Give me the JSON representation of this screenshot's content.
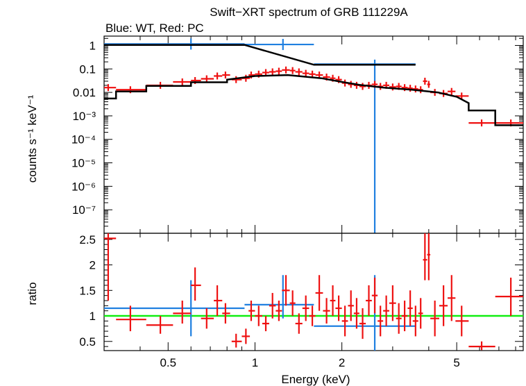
{
  "colors": {
    "blue": "#1f7fe0",
    "red": "#ee1111",
    "black": "#000000",
    "green": "#11ee11"
  },
  "chart_data": {
    "type": "scatter",
    "title": "Swift−XRT spectrum of GRB 111229A",
    "subtitle": "Blue: WT, Red: PC",
    "xlabel": "Energy (keV)",
    "xscale": "log",
    "xlim": [
      0.3,
      8.5
    ],
    "x_ticks": [
      {
        "v": 0.5,
        "label": "0.5"
      },
      {
        "v": 1,
        "label": "1"
      },
      {
        "v": 2,
        "label": "2"
      },
      {
        "v": 5,
        "label": "5"
      }
    ],
    "top_panel": {
      "ylabel": "counts s⁻¹ keV⁻¹",
      "yscale": "log",
      "ylim": [
        1e-08,
        2.5
      ],
      "y_ticks": [
        {
          "v": 1,
          "label": "1"
        },
        {
          "v": 0.1,
          "label": "0.1"
        },
        {
          "v": 0.01,
          "label": "0.01"
        },
        {
          "v": 0.001,
          "label": "10⁻³"
        },
        {
          "v": 0.0001,
          "label": "10⁻⁴"
        },
        {
          "v": 1e-05,
          "label": "10⁻⁵"
        },
        {
          "v": 1e-06,
          "label": "10⁻⁶"
        },
        {
          "v": 1e-07,
          "label": "10⁻⁷"
        }
      ],
      "series": [
        {
          "name": "WT data",
          "color": "blue",
          "points": [
            [
              0.6,
              0.3,
              0.92,
              1.15
            ],
            [
              1.25,
              0.92,
              1.6,
              1.1
            ],
            [
              2.6,
              1.6,
              3.6,
              0.16
            ]
          ]
        },
        {
          "name": "WT model",
          "color": "black",
          "steps": [
            [
              0.3,
              1.05
            ],
            [
              0.92,
              1.05
            ],
            [
              1.6,
              0.15
            ],
            [
              3.6,
              0.15
            ]
          ]
        },
        {
          "name": "PC data",
          "color": "red",
          "points": [
            [
              0.31,
              0.3,
              0.33,
              0.016
            ],
            [
              0.37,
              0.33,
              0.42,
              0.013
            ],
            [
              0.47,
              0.42,
              0.52,
              0.02
            ],
            [
              0.56,
              0.52,
              0.6,
              0.028
            ],
            [
              0.62,
              0.6,
              0.65,
              0.032
            ],
            [
              0.68,
              0.65,
              0.72,
              0.038
            ],
            [
              0.74,
              0.72,
              0.77,
              0.05
            ],
            [
              0.79,
              0.77,
              0.82,
              0.055
            ],
            [
              0.86,
              0.83,
              0.9,
              0.035
            ],
            [
              0.93,
              0.9,
              0.96,
              0.04
            ],
            [
              0.97,
              0.95,
              1.0,
              0.055
            ],
            [
              1.03,
              1.0,
              1.06,
              0.06
            ],
            [
              1.09,
              1.06,
              1.12,
              0.07
            ],
            [
              1.15,
              1.12,
              1.18,
              0.075
            ],
            [
              1.21,
              1.18,
              1.24,
              0.08
            ],
            [
              1.28,
              1.24,
              1.32,
              0.09
            ],
            [
              1.35,
              1.32,
              1.38,
              0.085
            ],
            [
              1.42,
              1.38,
              1.46,
              0.075
            ],
            [
              1.5,
              1.46,
              1.54,
              0.065
            ],
            [
              1.58,
              1.54,
              1.62,
              0.06
            ],
            [
              1.67,
              1.62,
              1.72,
              0.055
            ],
            [
              1.77,
              1.72,
              1.82,
              0.045
            ],
            [
              1.86,
              1.82,
              1.9,
              0.04
            ],
            [
              1.95,
              1.9,
              2.0,
              0.035
            ],
            [
              2.05,
              2.0,
              2.1,
              0.025
            ],
            [
              2.15,
              2.1,
              2.2,
              0.022
            ],
            [
              2.25,
              2.2,
              2.3,
              0.02
            ],
            [
              2.36,
              2.3,
              2.42,
              0.018
            ],
            [
              2.48,
              2.42,
              2.54,
              0.02
            ],
            [
              2.6,
              2.54,
              2.66,
              0.022
            ],
            [
              2.72,
              2.66,
              2.78,
              0.018
            ],
            [
              2.85,
              2.78,
              2.92,
              0.02
            ],
            [
              3.0,
              2.92,
              3.08,
              0.017
            ],
            [
              3.15,
              3.08,
              3.22,
              0.018
            ],
            [
              3.3,
              3.22,
              3.38,
              0.016
            ],
            [
              3.45,
              3.38,
              3.52,
              0.015
            ],
            [
              3.6,
              3.52,
              3.68,
              0.014
            ],
            [
              3.75,
              3.68,
              3.82,
              0.013
            ],
            [
              3.88,
              3.82,
              3.95,
              0.03
            ],
            [
              4.0,
              3.95,
              4.05,
              0.022
            ],
            [
              4.2,
              4.05,
              4.35,
              0.01
            ],
            [
              4.5,
              4.35,
              4.65,
              0.009
            ],
            [
              4.8,
              4.65,
              4.95,
              0.011
            ],
            [
              5.2,
              4.95,
              5.5,
              0.007
            ],
            [
              6.1,
              5.5,
              6.8,
              0.0005
            ],
            [
              7.7,
              6.8,
              8.5,
              0.0005
            ]
          ]
        },
        {
          "name": "PC model",
          "color": "black",
          "steps": [
            [
              0.3,
              0.0055
            ],
            [
              0.33,
              0.0055
            ],
            [
              0.33,
              0.011
            ],
            [
              0.42,
              0.011
            ],
            [
              0.42,
              0.019
            ],
            [
              0.6,
              0.019
            ],
            [
              0.6,
              0.027
            ],
            [
              0.8,
              0.027
            ],
            [
              0.8,
              0.035
            ],
            [
              1.0,
              0.05
            ],
            [
              1.3,
              0.055
            ],
            [
              1.7,
              0.04
            ],
            [
              2.0,
              0.028
            ],
            [
              2.3,
              0.021
            ],
            [
              2.8,
              0.016
            ],
            [
              3.5,
              0.013
            ],
            [
              4.3,
              0.01
            ],
            [
              5.0,
              0.0065
            ],
            [
              5.5,
              0.0035
            ],
            [
              5.5,
              0.0017
            ],
            [
              6.8,
              0.0017
            ],
            [
              6.8,
              0.0004
            ],
            [
              8.5,
              0.0004
            ]
          ]
        }
      ]
    },
    "bottom_panel": {
      "ylabel": "ratio",
      "ylim": [
        0.32,
        2.62
      ],
      "y_ticks": [
        {
          "v": 0.5,
          "label": "0.5"
        },
        {
          "v": 1,
          "label": "1"
        },
        {
          "v": 1.5,
          "label": "1.5"
        },
        {
          "v": 2,
          "label": "2"
        },
        {
          "v": 2.5,
          "label": "2.5"
        }
      ],
      "reference_line": {
        "y": 1,
        "color": "green"
      },
      "series": [
        {
          "name": "WT ratio",
          "color": "blue",
          "points": [
            [
              0.6,
              0.3,
              0.92,
              1.15,
              0.6,
              1.7
            ],
            [
              1.25,
              0.92,
              1.6,
              1.22,
              0.95,
              1.8
            ],
            [
              2.6,
              1.6,
              3.6,
              0.8,
              0.32,
              1.8
            ]
          ]
        },
        {
          "name": "PC ratio",
          "color": "red",
          "points": [
            [
              0.31,
              0.3,
              0.33,
              2.52,
              1.3,
              2.62
            ],
            [
              0.37,
              0.33,
              0.42,
              0.93,
              0.7,
              1.2
            ],
            [
              0.47,
              0.42,
              0.52,
              0.82,
              0.65,
              1.0
            ],
            [
              0.56,
              0.52,
              0.6,
              1.05,
              0.85,
              1.3
            ],
            [
              0.62,
              0.6,
              0.65,
              1.6,
              1.3,
              1.95
            ],
            [
              0.68,
              0.65,
              0.72,
              0.95,
              0.75,
              1.15
            ],
            [
              0.74,
              0.72,
              0.77,
              1.3,
              1.0,
              1.6
            ],
            [
              0.79,
              0.77,
              0.82,
              1.05,
              0.85,
              1.25
            ],
            [
              0.86,
              0.83,
              0.9,
              0.5,
              0.38,
              0.65
            ],
            [
              0.93,
              0.9,
              0.96,
              0.6,
              0.45,
              0.75
            ],
            [
              0.97,
              0.95,
              1.0,
              1.1,
              0.9,
              1.3
            ],
            [
              1.03,
              1.0,
              1.06,
              1.0,
              0.8,
              1.2
            ],
            [
              1.09,
              1.06,
              1.12,
              0.85,
              0.7,
              1.0
            ],
            [
              1.15,
              1.12,
              1.18,
              1.2,
              0.95,
              1.45
            ],
            [
              1.21,
              1.18,
              1.24,
              1.1,
              0.9,
              1.3
            ],
            [
              1.28,
              1.24,
              1.32,
              1.5,
              1.2,
              1.8
            ],
            [
              1.35,
              1.32,
              1.38,
              1.25,
              1.0,
              1.5
            ],
            [
              1.42,
              1.38,
              1.46,
              0.85,
              0.65,
              1.05
            ],
            [
              1.5,
              1.46,
              1.54,
              1.15,
              0.9,
              1.4
            ],
            [
              1.58,
              1.54,
              1.62,
              1.0,
              0.8,
              1.2
            ],
            [
              1.67,
              1.62,
              1.72,
              1.45,
              1.1,
              1.8
            ],
            [
              1.77,
              1.72,
              1.82,
              1.1,
              0.85,
              1.35
            ],
            [
              1.86,
              1.82,
              1.9,
              1.3,
              1.0,
              1.6
            ],
            [
              1.95,
              1.9,
              2.0,
              1.15,
              0.9,
              1.4
            ],
            [
              2.05,
              2.0,
              2.1,
              0.9,
              0.6,
              1.2
            ],
            [
              2.15,
              2.1,
              2.2,
              1.2,
              0.9,
              1.5
            ],
            [
              2.25,
              2.2,
              2.3,
              1.05,
              0.75,
              1.35
            ],
            [
              2.36,
              2.3,
              2.42,
              0.85,
              0.55,
              1.15
            ],
            [
              2.48,
              2.42,
              2.54,
              1.3,
              1.0,
              1.6
            ],
            [
              2.6,
              2.54,
              2.66,
              1.4,
              1.05,
              1.75
            ],
            [
              2.72,
              2.66,
              2.78,
              0.9,
              0.6,
              1.2
            ],
            [
              2.85,
              2.78,
              2.92,
              1.1,
              0.8,
              1.4
            ],
            [
              3.0,
              2.92,
              3.08,
              1.25,
              0.9,
              1.6
            ],
            [
              3.15,
              3.08,
              3.22,
              0.95,
              0.65,
              1.25
            ],
            [
              3.3,
              3.22,
              3.38,
              1.0,
              0.7,
              1.3
            ],
            [
              3.45,
              3.38,
              3.52,
              1.15,
              0.8,
              1.5
            ],
            [
              3.6,
              3.52,
              3.68,
              0.9,
              0.6,
              1.2
            ],
            [
              3.75,
              3.68,
              3.82,
              1.05,
              0.75,
              1.35
            ],
            [
              3.88,
              3.82,
              3.95,
              2.1,
              1.7,
              2.62
            ],
            [
              4.0,
              3.95,
              4.05,
              2.2,
              1.7,
              2.62
            ],
            [
              4.2,
              4.05,
              4.35,
              0.95,
              0.6,
              1.3
            ],
            [
              4.5,
              4.35,
              4.65,
              1.2,
              0.8,
              1.6
            ],
            [
              4.8,
              4.65,
              4.95,
              1.35,
              0.9,
              1.8
            ],
            [
              5.2,
              4.95,
              5.5,
              0.9,
              0.6,
              1.2
            ],
            [
              6.1,
              5.5,
              6.8,
              0.4,
              0.33,
              0.5
            ],
            [
              7.7,
              6.8,
              8.5,
              1.38,
              1.0,
              1.75
            ]
          ]
        }
      ]
    }
  }
}
